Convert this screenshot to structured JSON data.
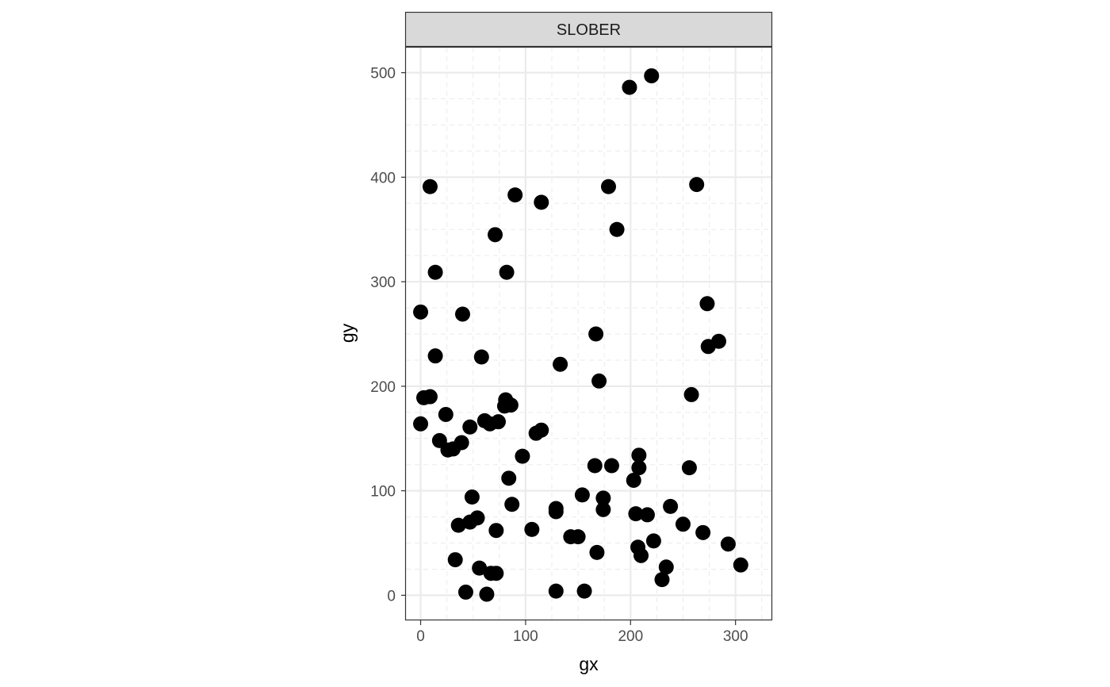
{
  "chart_data": {
    "type": "scatter",
    "facet_label": "SLOBER",
    "xlabel": "gx",
    "ylabel": "gy",
    "xlim": [
      -14,
      335
    ],
    "ylim": [
      -24,
      524
    ],
    "x_ticks": [
      0,
      100,
      200,
      300
    ],
    "y_ticks": [
      0,
      100,
      200,
      300,
      400,
      500
    ],
    "x_tick_labels": [
      "0",
      "100",
      "200",
      "300"
    ],
    "y_tick_labels": [
      "0",
      "100",
      "200",
      "300",
      "400",
      "500"
    ],
    "grid": true,
    "legend": "none",
    "point_color": "#000000",
    "points": [
      [
        220,
        497
      ],
      [
        199,
        486
      ],
      [
        9,
        391
      ],
      [
        90,
        383
      ],
      [
        115,
        376
      ],
      [
        179,
        391
      ],
      [
        263,
        393
      ],
      [
        71,
        345
      ],
      [
        187,
        350
      ],
      [
        14,
        309
      ],
      [
        82,
        309
      ],
      [
        0,
        271
      ],
      [
        40,
        269
      ],
      [
        273,
        279
      ],
      [
        167,
        250
      ],
      [
        274,
        238
      ],
      [
        284,
        243
      ],
      [
        14,
        229
      ],
      [
        58,
        228
      ],
      [
        133,
        221
      ],
      [
        170,
        205
      ],
      [
        258,
        192
      ],
      [
        3,
        189
      ],
      [
        9,
        190
      ],
      [
        81,
        187
      ],
      [
        80,
        181
      ],
      [
        86,
        182
      ],
      [
        24,
        173
      ],
      [
        0,
        164
      ],
      [
        61,
        167
      ],
      [
        66,
        164
      ],
      [
        74,
        166
      ],
      [
        47,
        161
      ],
      [
        110,
        155
      ],
      [
        115,
        158
      ],
      [
        18,
        148
      ],
      [
        39,
        146
      ],
      [
        26,
        139
      ],
      [
        31,
        140
      ],
      [
        97,
        133
      ],
      [
        166,
        124
      ],
      [
        182,
        124
      ],
      [
        208,
        134
      ],
      [
        208,
        122
      ],
      [
        256,
        122
      ],
      [
        84,
        112
      ],
      [
        203,
        110
      ],
      [
        49,
        94
      ],
      [
        154,
        96
      ],
      [
        174,
        93
      ],
      [
        129,
        83
      ],
      [
        129,
        80
      ],
      [
        174,
        82
      ],
      [
        238,
        85
      ],
      [
        87,
        87
      ],
      [
        205,
        78
      ],
      [
        216,
        77
      ],
      [
        54,
        74
      ],
      [
        47,
        70
      ],
      [
        36,
        67
      ],
      [
        72,
        62
      ],
      [
        106,
        63
      ],
      [
        250,
        68
      ],
      [
        143,
        56
      ],
      [
        150,
        56
      ],
      [
        222,
        52
      ],
      [
        269,
        60
      ],
      [
        207,
        46
      ],
      [
        168,
        41
      ],
      [
        210,
        38
      ],
      [
        293,
        49
      ],
      [
        33,
        34
      ],
      [
        56,
        26
      ],
      [
        67,
        21
      ],
      [
        72,
        21
      ],
      [
        234,
        27
      ],
      [
        305,
        29
      ],
      [
        230,
        15
      ],
      [
        43,
        3
      ],
      [
        63,
        1
      ],
      [
        129,
        4
      ],
      [
        156,
        4
      ]
    ]
  }
}
